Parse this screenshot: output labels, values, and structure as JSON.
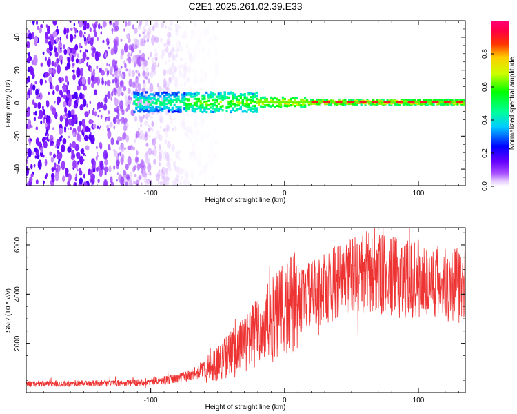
{
  "figure": {
    "title": "C2E1.2025.261.02.39.E33"
  },
  "chart_data": [
    {
      "type": "heatmap",
      "xlabel": "Height of straight line (km)",
      "ylabel": "Frequency (Hz)",
      "xlim": [
        -193,
        135
      ],
      "ylim": [
        -50,
        50
      ],
      "xticks": [
        {
          "value": -100,
          "label": "-100"
        },
        {
          "value": 0,
          "label": "0"
        },
        {
          "value": 100,
          "label": "100"
        }
      ],
      "yticks": [
        {
          "value": 40,
          "label": "40"
        },
        {
          "value": 20,
          "label": "20"
        },
        {
          "value": 0,
          "label": "0"
        },
        {
          "value": -20,
          "label": "-20"
        },
        {
          "value": -40,
          "label": "-40"
        }
      ],
      "colorbar": {
        "label": "Normalized spectral amplitude",
        "range": [
          0,
          1
        ],
        "ticks": [
          {
            "value": 0.0,
            "label": "0.0"
          },
          {
            "value": 0.2,
            "label": "0.2"
          },
          {
            "value": 0.4,
            "label": "0.4"
          },
          {
            "value": 0.6,
            "label": "0.6"
          },
          {
            "value": 0.8,
            "label": "0.8"
          }
        ]
      },
      "description_points": {
        "noise_region_x": [
          -193,
          -60
        ],
        "signal_band_start_x": -113,
        "signal_center_freq_hz": 0.5
      }
    },
    {
      "type": "line",
      "xlabel": "Height of straight line (km)",
      "ylabel": "SNR (10 * v/v)",
      "xlim": [
        -193,
        135
      ],
      "ylim": [
        0,
        6700
      ],
      "xticks": [
        {
          "value": -100,
          "label": "-100"
        },
        {
          "value": 0,
          "label": "0"
        },
        {
          "value": 100,
          "label": "100"
        }
      ],
      "yticks": [
        {
          "value": 2000,
          "label": "2000"
        },
        {
          "value": 4000,
          "label": "4000"
        },
        {
          "value": 6000,
          "label": "6000"
        }
      ],
      "series": [
        {
          "name": "SNR",
          "color": "#ee3333",
          "trend": {
            "x": [
              -193,
              -120,
              -90,
              -70,
              -50,
              -30,
              -15,
              0,
              20,
              40,
              60,
              80,
              100,
              120,
              135
            ],
            "y": [
              350,
              380,
              480,
              700,
              1200,
              2000,
              2700,
              3300,
              4000,
              4500,
              4900,
              4700,
              4550,
              4450,
              4300
            ]
          }
        }
      ]
    }
  ]
}
